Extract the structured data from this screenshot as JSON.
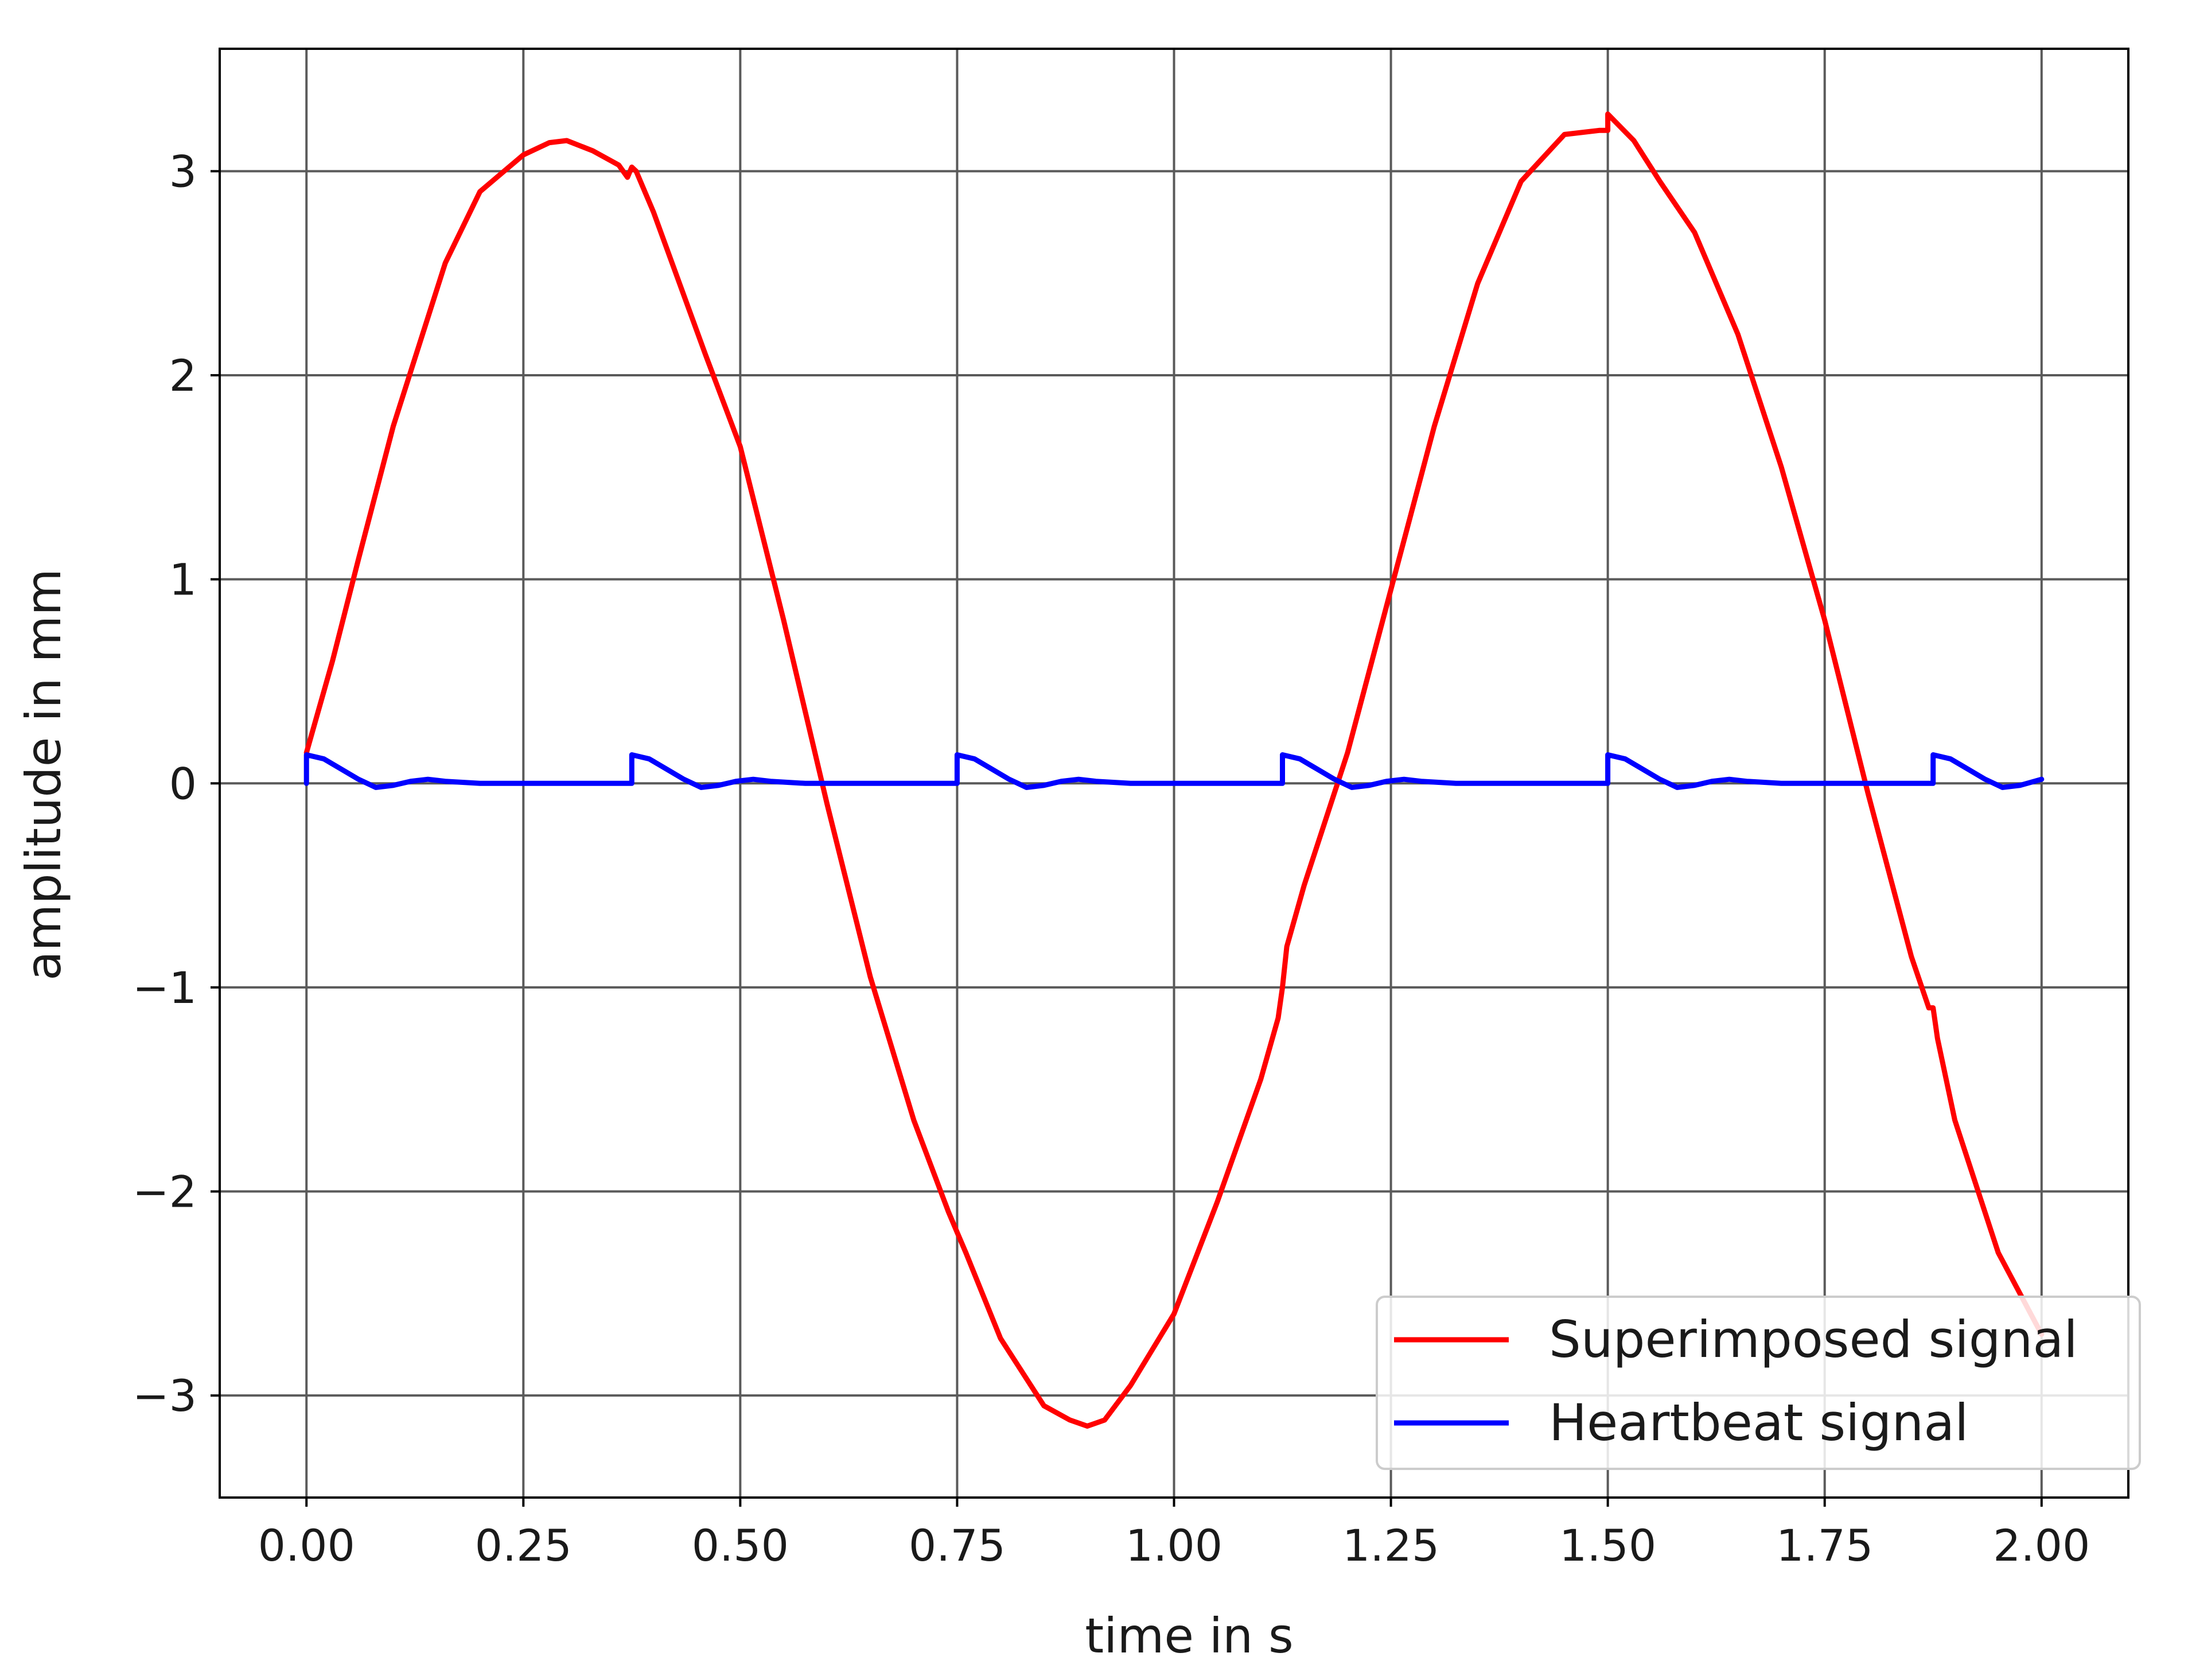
{
  "chart_data": {
    "type": "line",
    "title": "",
    "xlabel": "time in s",
    "ylabel": "amplitude in mm",
    "xlim": [
      -0.1,
      2.1
    ],
    "ylim": [
      -3.5,
      3.6
    ],
    "grid": true,
    "legend_position": "bottom-right",
    "x_ticks": [
      0.0,
      0.25,
      0.5,
      0.75,
      1.0,
      1.25,
      1.5,
      1.75,
      2.0
    ],
    "x_tick_labels": [
      "0.00",
      "0.25",
      "0.50",
      "0.75",
      "1.00",
      "1.25",
      "1.50",
      "1.75",
      "2.00"
    ],
    "y_ticks": [
      3,
      2,
      1,
      0,
      -1,
      -2,
      -3
    ],
    "y_tick_labels": [
      "3",
      "2",
      "1",
      "0",
      "−1",
      "−2",
      "−3"
    ],
    "series": [
      {
        "name": "Superimposed signal",
        "color": "#ff0000",
        "x": [
          0.0,
          0.03,
          0.06,
          0.1,
          0.13,
          0.16,
          0.2,
          0.25,
          0.28,
          0.3,
          0.33,
          0.36,
          0.37,
          0.375,
          0.38,
          0.4,
          0.43,
          0.46,
          0.5,
          0.55,
          0.6,
          0.65,
          0.7,
          0.74,
          0.75,
          0.76,
          0.8,
          0.85,
          0.88,
          0.9,
          0.92,
          0.95,
          1.0,
          1.05,
          1.1,
          1.12,
          1.125,
          1.13,
          1.15,
          1.2,
          1.25,
          1.3,
          1.35,
          1.4,
          1.45,
          1.49,
          1.5,
          1.5,
          1.53,
          1.56,
          1.6,
          1.65,
          1.7,
          1.75,
          1.8,
          1.85,
          1.87,
          1.875,
          1.88,
          1.9,
          1.95,
          2.0
        ],
        "y": [
          0.15,
          0.6,
          1.1,
          1.75,
          2.15,
          2.55,
          2.9,
          3.08,
          3.14,
          3.15,
          3.1,
          3.03,
          2.97,
          3.02,
          3.0,
          2.8,
          2.45,
          2.1,
          1.65,
          0.8,
          -0.1,
          -0.95,
          -1.65,
          -2.1,
          -2.2,
          -2.3,
          -2.72,
          -3.05,
          -3.12,
          -3.15,
          -3.12,
          -2.95,
          -2.6,
          -2.05,
          -1.45,
          -1.15,
          -1.0,
          -0.8,
          -0.5,
          0.15,
          0.95,
          1.75,
          2.45,
          2.95,
          3.18,
          3.2,
          3.2,
          3.28,
          3.15,
          2.95,
          2.7,
          2.2,
          1.55,
          0.8,
          -0.05,
          -0.85,
          -1.1,
          -1.1,
          -1.25,
          -1.65,
          -2.3,
          -2.7
        ]
      },
      {
        "name": "Heartbeat signal",
        "color": "#0000ff",
        "x": [
          0.0,
          0.0,
          0.02,
          0.04,
          0.06,
          0.08,
          0.1,
          0.12,
          0.14,
          0.16,
          0.2,
          0.3,
          0.375,
          0.375,
          0.395,
          0.415,
          0.435,
          0.455,
          0.475,
          0.495,
          0.515,
          0.535,
          0.575,
          0.675,
          0.75,
          0.75,
          0.77,
          0.79,
          0.81,
          0.83,
          0.85,
          0.87,
          0.89,
          0.91,
          0.95,
          1.05,
          1.125,
          1.125,
          1.145,
          1.165,
          1.185,
          1.205,
          1.225,
          1.245,
          1.265,
          1.285,
          1.325,
          1.425,
          1.5,
          1.5,
          1.52,
          1.54,
          1.56,
          1.58,
          1.6,
          1.62,
          1.64,
          1.66,
          1.7,
          1.8,
          1.875,
          1.875,
          1.895,
          1.915,
          1.935,
          1.955,
          1.975,
          2.0
        ],
        "y": [
          0.0,
          0.14,
          0.12,
          0.07,
          0.02,
          -0.02,
          -0.01,
          0.01,
          0.02,
          0.01,
          0.0,
          0.0,
          0.0,
          0.14,
          0.12,
          0.07,
          0.02,
          -0.02,
          -0.01,
          0.01,
          0.02,
          0.01,
          0.0,
          0.0,
          0.0,
          0.14,
          0.12,
          0.07,
          0.02,
          -0.02,
          -0.01,
          0.01,
          0.02,
          0.01,
          0.0,
          0.0,
          0.0,
          0.14,
          0.12,
          0.07,
          0.02,
          -0.02,
          -0.01,
          0.01,
          0.02,
          0.01,
          0.0,
          0.0,
          0.0,
          0.14,
          0.12,
          0.07,
          0.02,
          -0.02,
          -0.01,
          0.01,
          0.02,
          0.01,
          0.0,
          0.0,
          0.0,
          0.14,
          0.12,
          0.07,
          0.02,
          -0.02,
          -0.01,
          0.02
        ]
      }
    ]
  }
}
